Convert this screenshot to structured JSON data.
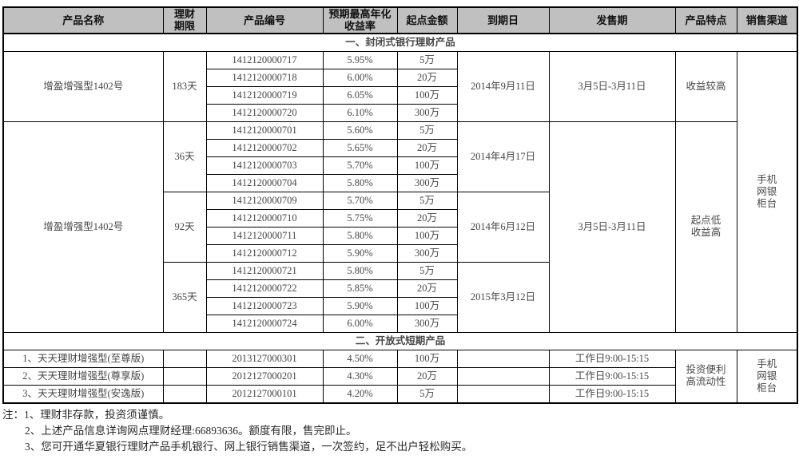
{
  "colors": {
    "header_bg": "#c0c0c0",
    "border": "#000000"
  },
  "table": {
    "columns": [
      {
        "id": "product-name",
        "lines": [
          "产品名称"
        ]
      },
      {
        "id": "term",
        "lines": [
          "理财",
          "期限"
        ]
      },
      {
        "id": "product-code",
        "lines": [
          "产品编号"
        ]
      },
      {
        "id": "max-rate",
        "lines": [
          "预期最高年化",
          "收益率"
        ]
      },
      {
        "id": "min-amount",
        "lines": [
          "起点金额"
        ]
      },
      {
        "id": "maturity-date",
        "lines": [
          "到期日"
        ]
      },
      {
        "id": "sale-period",
        "lines": [
          "发售期"
        ]
      },
      {
        "id": "features",
        "lines": [
          "产品特点"
        ]
      },
      {
        "id": "sales-channel",
        "lines": [
          "销售渠道"
        ]
      }
    ],
    "sections": [
      {
        "title": "一、封闭式银行理财产品",
        "channel_lines": [
          "手机",
          "网银",
          "柜台"
        ],
        "blocks": [
          {
            "name": "增盈增强型1402号",
            "sale_period": "3月5日-3月11日",
            "feature_lines": [
              "收益较高"
            ],
            "groups": [
              {
                "term": "183天",
                "maturity": "2014年9月11日",
                "rows": [
                  {
                    "code": "1412120000717",
                    "rate": "5.95%",
                    "amount": "5万"
                  },
                  {
                    "code": "1412120000718",
                    "rate": "6.00%",
                    "amount": "20万"
                  },
                  {
                    "code": "1412120000719",
                    "rate": "6.05%",
                    "amount": "100万"
                  },
                  {
                    "code": "1412120000720",
                    "rate": "6.10%",
                    "amount": "300万"
                  }
                ]
              }
            ]
          },
          {
            "name": "增盈增强型1402号",
            "sale_period": "3月5日-3月11日",
            "feature_lines": [
              "起点低",
              "收益高"
            ],
            "groups": [
              {
                "term": "36天",
                "maturity": "2014年4月17日",
                "rows": [
                  {
                    "code": "1412120000701",
                    "rate": "5.60%",
                    "amount": "5万"
                  },
                  {
                    "code": "1412120000702",
                    "rate": "5.65%",
                    "amount": "20万"
                  },
                  {
                    "code": "1412120000703",
                    "rate": "5.70%",
                    "amount": "100万"
                  },
                  {
                    "code": "1412120000704",
                    "rate": "5.80%",
                    "amount": "300万"
                  }
                ]
              },
              {
                "term": "92天",
                "maturity": "2014年6月12日",
                "rows": [
                  {
                    "code": "1412120000709",
                    "rate": "5.70%",
                    "amount": "5万"
                  },
                  {
                    "code": "1412120000710",
                    "rate": "5.75%",
                    "amount": "20万"
                  },
                  {
                    "code": "1412120000711",
                    "rate": "5.80%",
                    "amount": "100万"
                  },
                  {
                    "code": "1412120000712",
                    "rate": "5.90%",
                    "amount": "300万"
                  }
                ]
              },
              {
                "term": "365天",
                "maturity": "2015年3月12日",
                "rows": [
                  {
                    "code": "1412120000721",
                    "rate": "5.80%",
                    "amount": "5万"
                  },
                  {
                    "code": "1412120000722",
                    "rate": "5.85%",
                    "amount": "20万"
                  },
                  {
                    "code": "1412120000723",
                    "rate": "5.90%",
                    "amount": "100万"
                  },
                  {
                    "code": "1412120000724",
                    "rate": "6.00%",
                    "amount": "300万"
                  }
                ]
              }
            ]
          }
        ]
      },
      {
        "title": "二、开放式短期产品",
        "channel_lines": [
          "手机",
          "网银",
          "柜台"
        ],
        "feature_lines": [
          "投资便利",
          "高流动性"
        ],
        "rows": [
          {
            "name": "1、天天理财增强型(至尊版)",
            "term": "",
            "code": "2013127000301",
            "rate": "4.50%",
            "amount": "100万",
            "maturity": "",
            "sale": "工作日9:00-15:15"
          },
          {
            "name": "2、天天理财增强型(尊享版)",
            "term": "",
            "code": "2012127000201",
            "rate": "4.30%",
            "amount": "20万",
            "maturity": "",
            "sale": "工作日9:00-15:15"
          },
          {
            "name": "3、天天理财增强型(安逸版)",
            "term": "",
            "code": "2012127000101",
            "rate": "4.20%",
            "amount": "5万",
            "maturity": "",
            "sale": "工作日9:00-15:15"
          }
        ]
      }
    ]
  },
  "notes": {
    "prefix": "注：",
    "items": [
      "1、理财非存款，投资须谨慎。",
      "2、上述产品信息详询网点理财经理:66893636。额度有限，售完即止。",
      "3、您可开通华夏银行理财产品手机银行、网上银行销售渠道，一次签约，足不出户轻松购买。"
    ]
  }
}
